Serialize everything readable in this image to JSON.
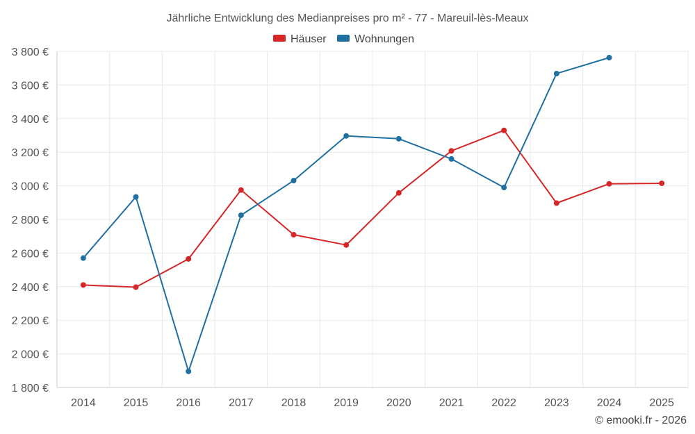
{
  "chart_data": {
    "type": "line",
    "title": "Jährliche Entwicklung des Medianpreises pro m² - 77 - Mareuil-lès-Meaux",
    "categories": [
      "2014",
      "2015",
      "2016",
      "2017",
      "2018",
      "2019",
      "2020",
      "2021",
      "2022",
      "2023",
      "2024",
      "2025"
    ],
    "ylim": [
      1800,
      3800
    ],
    "yticks": [
      1800,
      2000,
      2200,
      2400,
      2600,
      2800,
      3000,
      3200,
      3400,
      3600,
      3800
    ],
    "ytick_labels": [
      "1 800 €",
      "2 000 €",
      "2 200 €",
      "2 400 €",
      "2 600 €",
      "2 800 €",
      "3 000 €",
      "3 200 €",
      "3 400 €",
      "3 600 €",
      "3 800 €"
    ],
    "grid": true,
    "legend_position": "top-center",
    "series": [
      {
        "name": "Häuser",
        "color": "#d62728",
        "values": [
          2410,
          2397,
          2565,
          2975,
          2709,
          2648,
          2958,
          3208,
          3330,
          2897,
          3012,
          3015
        ]
      },
      {
        "name": "Wohnungen",
        "color": "#1f6fa0",
        "values": [
          2570,
          2934,
          1896,
          2825,
          3031,
          3297,
          3280,
          3160,
          2990,
          3668,
          3763,
          null
        ]
      }
    ],
    "credit": "© emooki.fr - 2026"
  }
}
